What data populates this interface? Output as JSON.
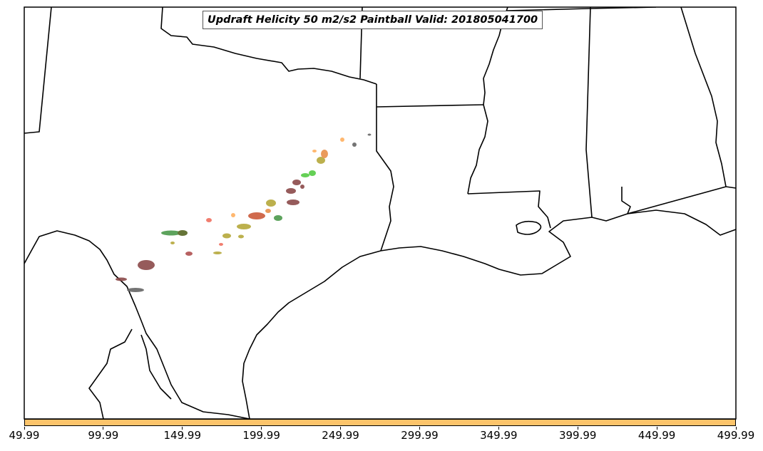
{
  "title": "Updraft Helicity 50 m2/s2 Paintball Valid: 201805041700",
  "colorbar": {
    "color": "#fcc46b",
    "ticks": [
      "49.99",
      "99.99",
      "149.99",
      "199.99",
      "249.99",
      "299.99",
      "349.99",
      "399.99",
      "449.99",
      "499.99"
    ]
  },
  "colors": {
    "background": "#ffffff",
    "border": "#000000",
    "paintball_palette": [
      "#8b4a4a",
      "#cc5a3a",
      "#e8904a",
      "#b5a83a",
      "#4c9a4c",
      "#55cc44",
      "#f07060",
      "#666666",
      "#ffb060",
      "#556622"
    ]
  }
}
